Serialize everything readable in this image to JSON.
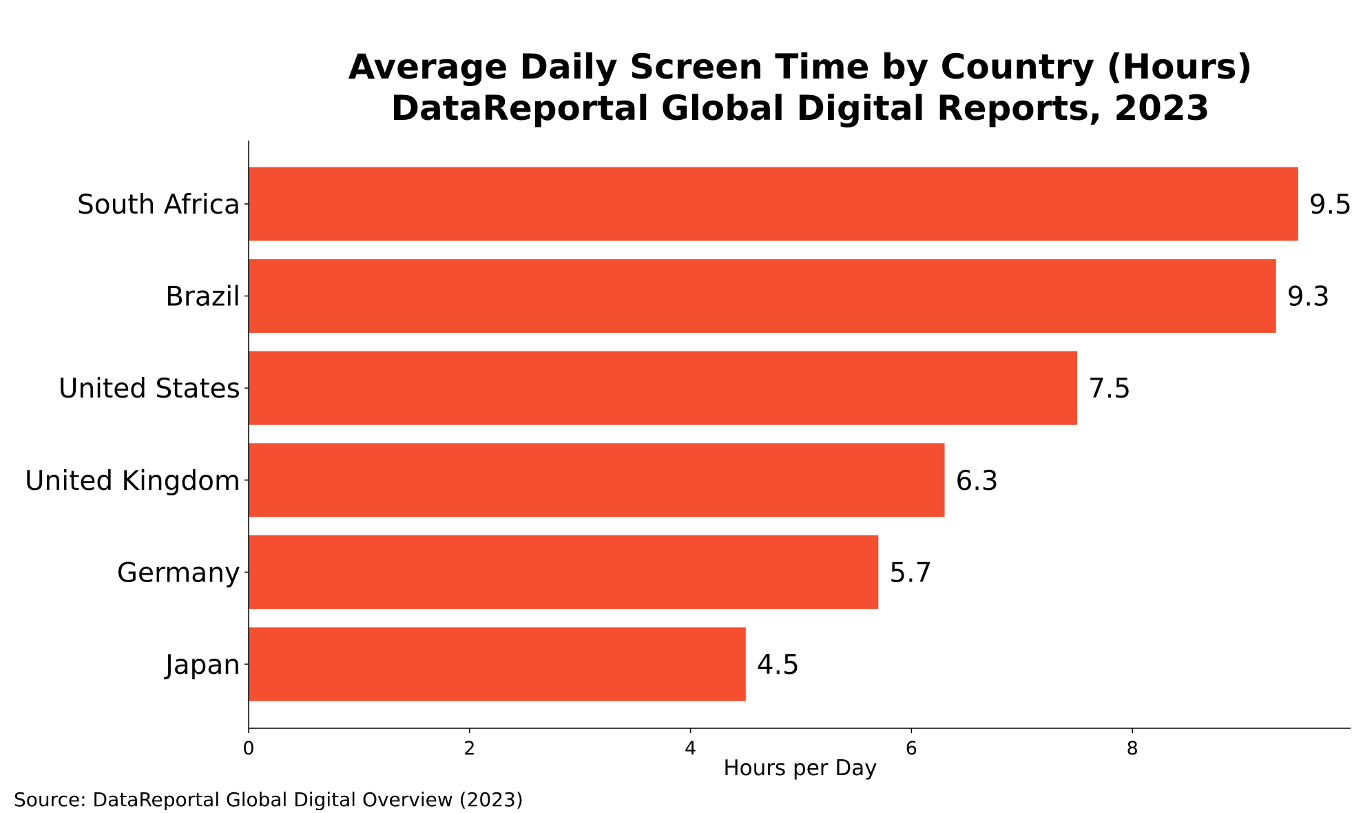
{
  "chart_data": {
    "type": "bar",
    "orientation": "horizontal",
    "title": "Average Daily Screen Time by Country (Hours)",
    "subtitle": "DataReportal Global Digital Reports, 2023",
    "categories": [
      "South Africa",
      "Brazil",
      "United States",
      "United Kingdom",
      "Germany",
      "Japan"
    ],
    "values": [
      9.5,
      9.3,
      7.5,
      6.3,
      5.7,
      4.5
    ],
    "value_labels": [
      "9.5",
      "9.3",
      "7.5",
      "6.3",
      "5.7",
      "4.5"
    ],
    "xlabel": "Hours per Day",
    "ylabel": "",
    "xlim": [
      0,
      9.975
    ],
    "xticks": [
      0,
      2,
      4,
      6,
      8
    ],
    "xtick_labels": [
      "0",
      "2",
      "4",
      "6",
      "8"
    ],
    "grid": false,
    "legend": "none",
    "bar_color": "#F44F30",
    "source": "Source: DataReportal Global Digital Overview (2023)"
  }
}
